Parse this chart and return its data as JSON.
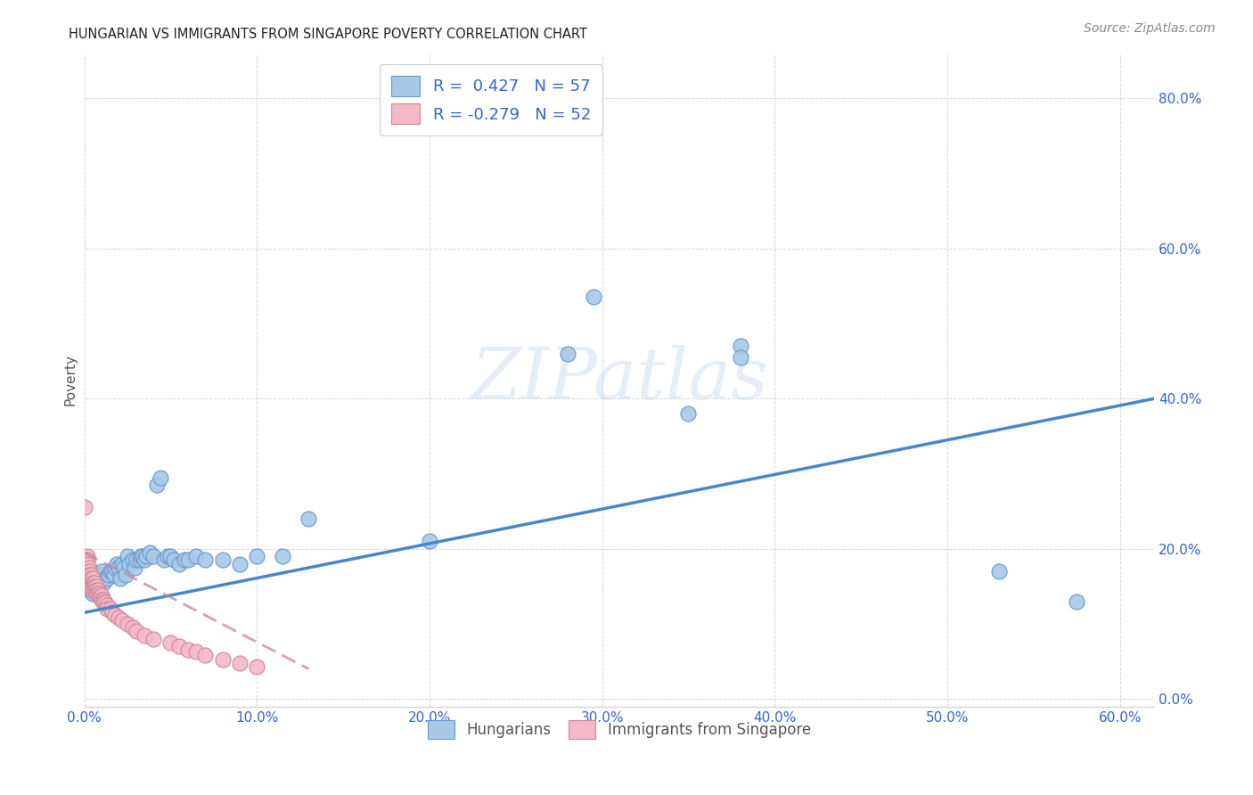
{
  "title": "HUNGARIAN VS IMMIGRANTS FROM SINGAPORE POVERTY CORRELATION CHART",
  "source": "Source: ZipAtlas.com",
  "xlim": [
    0.0,
    0.62
  ],
  "ylim": [
    -0.01,
    0.86
  ],
  "blue_color": "#a8c8e8",
  "blue_edge_color": "#6699cc",
  "pink_color": "#f4b8c8",
  "pink_edge_color": "#cc8899",
  "blue_line_color": "#4488cc",
  "pink_line_color": "#cc8899",
  "legend_text_color": "#3366cc",
  "grid_color": "#cccccc",
  "blue_scatter": [
    [
      0.003,
      0.145
    ],
    [
      0.004,
      0.155
    ],
    [
      0.005,
      0.14
    ],
    [
      0.006,
      0.16
    ],
    [
      0.007,
      0.155
    ],
    [
      0.008,
      0.15
    ],
    [
      0.009,
      0.165
    ],
    [
      0.01,
      0.17
    ],
    [
      0.011,
      0.155
    ],
    [
      0.012,
      0.16
    ],
    [
      0.013,
      0.16
    ],
    [
      0.014,
      0.165
    ],
    [
      0.015,
      0.17
    ],
    [
      0.016,
      0.17
    ],
    [
      0.017,
      0.165
    ],
    [
      0.018,
      0.175
    ],
    [
      0.019,
      0.18
    ],
    [
      0.02,
      0.175
    ],
    [
      0.021,
      0.16
    ],
    [
      0.022,
      0.18
    ],
    [
      0.023,
      0.175
    ],
    [
      0.024,
      0.165
    ],
    [
      0.025,
      0.19
    ],
    [
      0.026,
      0.18
    ],
    [
      0.028,
      0.185
    ],
    [
      0.029,
      0.175
    ],
    [
      0.03,
      0.185
    ],
    [
      0.032,
      0.185
    ],
    [
      0.033,
      0.19
    ],
    [
      0.034,
      0.19
    ],
    [
      0.035,
      0.185
    ],
    [
      0.036,
      0.19
    ],
    [
      0.038,
      0.195
    ],
    [
      0.04,
      0.19
    ],
    [
      0.042,
      0.285
    ],
    [
      0.044,
      0.295
    ],
    [
      0.046,
      0.185
    ],
    [
      0.048,
      0.19
    ],
    [
      0.05,
      0.19
    ],
    [
      0.052,
      0.185
    ],
    [
      0.055,
      0.18
    ],
    [
      0.058,
      0.185
    ],
    [
      0.06,
      0.185
    ],
    [
      0.065,
      0.19
    ],
    [
      0.07,
      0.185
    ],
    [
      0.08,
      0.185
    ],
    [
      0.09,
      0.18
    ],
    [
      0.1,
      0.19
    ],
    [
      0.115,
      0.19
    ],
    [
      0.13,
      0.24
    ],
    [
      0.2,
      0.21
    ],
    [
      0.28,
      0.46
    ],
    [
      0.295,
      0.535
    ],
    [
      0.35,
      0.38
    ],
    [
      0.38,
      0.47
    ],
    [
      0.38,
      0.455
    ],
    [
      0.53,
      0.17
    ],
    [
      0.575,
      0.13
    ]
  ],
  "pink_scatter": [
    [
      0.0,
      0.255
    ],
    [
      0.002,
      0.19
    ],
    [
      0.002,
      0.185
    ],
    [
      0.002,
      0.18
    ],
    [
      0.003,
      0.175
    ],
    [
      0.003,
      0.17
    ],
    [
      0.003,
      0.165
    ],
    [
      0.003,
      0.16
    ],
    [
      0.004,
      0.165
    ],
    [
      0.004,
      0.16
    ],
    [
      0.004,
      0.155
    ],
    [
      0.004,
      0.15
    ],
    [
      0.005,
      0.16
    ],
    [
      0.005,
      0.155
    ],
    [
      0.005,
      0.15
    ],
    [
      0.005,
      0.145
    ],
    [
      0.006,
      0.155
    ],
    [
      0.006,
      0.15
    ],
    [
      0.006,
      0.145
    ],
    [
      0.007,
      0.15
    ],
    [
      0.007,
      0.145
    ],
    [
      0.007,
      0.14
    ],
    [
      0.008,
      0.145
    ],
    [
      0.008,
      0.14
    ],
    [
      0.009,
      0.14
    ],
    [
      0.009,
      0.135
    ],
    [
      0.01,
      0.138
    ],
    [
      0.01,
      0.132
    ],
    [
      0.011,
      0.132
    ],
    [
      0.011,
      0.128
    ],
    [
      0.012,
      0.128
    ],
    [
      0.013,
      0.125
    ],
    [
      0.013,
      0.12
    ],
    [
      0.015,
      0.12
    ],
    [
      0.016,
      0.115
    ],
    [
      0.018,
      0.112
    ],
    [
      0.02,
      0.108
    ],
    [
      0.022,
      0.105
    ],
    [
      0.025,
      0.1
    ],
    [
      0.028,
      0.095
    ],
    [
      0.03,
      0.09
    ],
    [
      0.035,
      0.085
    ],
    [
      0.04,
      0.08
    ],
    [
      0.05,
      0.075
    ],
    [
      0.055,
      0.07
    ],
    [
      0.06,
      0.065
    ],
    [
      0.065,
      0.063
    ],
    [
      0.07,
      0.058
    ],
    [
      0.08,
      0.052
    ],
    [
      0.09,
      0.048
    ],
    [
      0.1,
      0.043
    ]
  ],
  "blue_trend_x": [
    0.0,
    0.62
  ],
  "blue_trend_y": [
    0.115,
    0.4
  ],
  "pink_trend_x": [
    0.0,
    0.13
  ],
  "pink_trend_y": [
    0.195,
    0.04
  ]
}
